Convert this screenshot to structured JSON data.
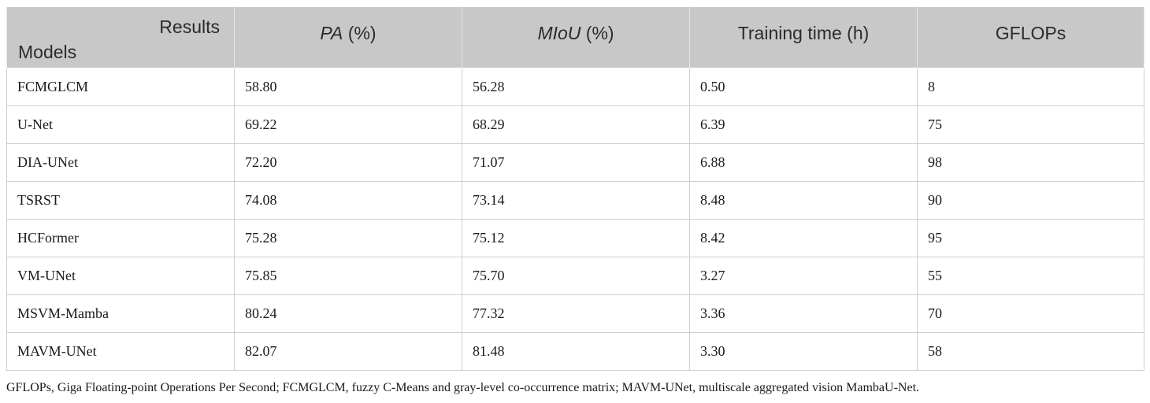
{
  "table": {
    "corner": {
      "results": "Results",
      "models": "Models"
    },
    "columns": [
      {
        "metric": "PA",
        "unit": " (%)"
      },
      {
        "metric": "MIoU",
        "unit": " (%)"
      },
      {
        "metric": "Training time (h)",
        "unit": ""
      },
      {
        "metric": "GFLOPs",
        "unit": ""
      }
    ],
    "rows": [
      [
        "FCMGLCM",
        "58.80",
        "56.28",
        "0.50",
        "8"
      ],
      [
        "U-Net",
        "69.22",
        "68.29",
        "6.39",
        "75"
      ],
      [
        "DIA-UNet",
        "72.20",
        "71.07",
        "6.88",
        "98"
      ],
      [
        "TSRST",
        "74.08",
        "73.14",
        "8.48",
        "90"
      ],
      [
        "HCFormer",
        "75.28",
        "75.12",
        "8.42",
        "95"
      ],
      [
        "VM-UNet",
        "75.85",
        "75.70",
        "3.27",
        "55"
      ],
      [
        "MSVM-Mamba",
        "80.24",
        "77.32",
        "3.36",
        "70"
      ],
      [
        "MAVM-UNet",
        "82.07",
        "81.48",
        "3.30",
        "58"
      ]
    ]
  },
  "footnote": "GFLOPs, Giga Floating-point Operations Per Second; FCMGLCM, fuzzy C-Means and gray-level co-occurrence matrix; MAVM-UNet, multiscale aggregated vision MambaU-Net."
}
